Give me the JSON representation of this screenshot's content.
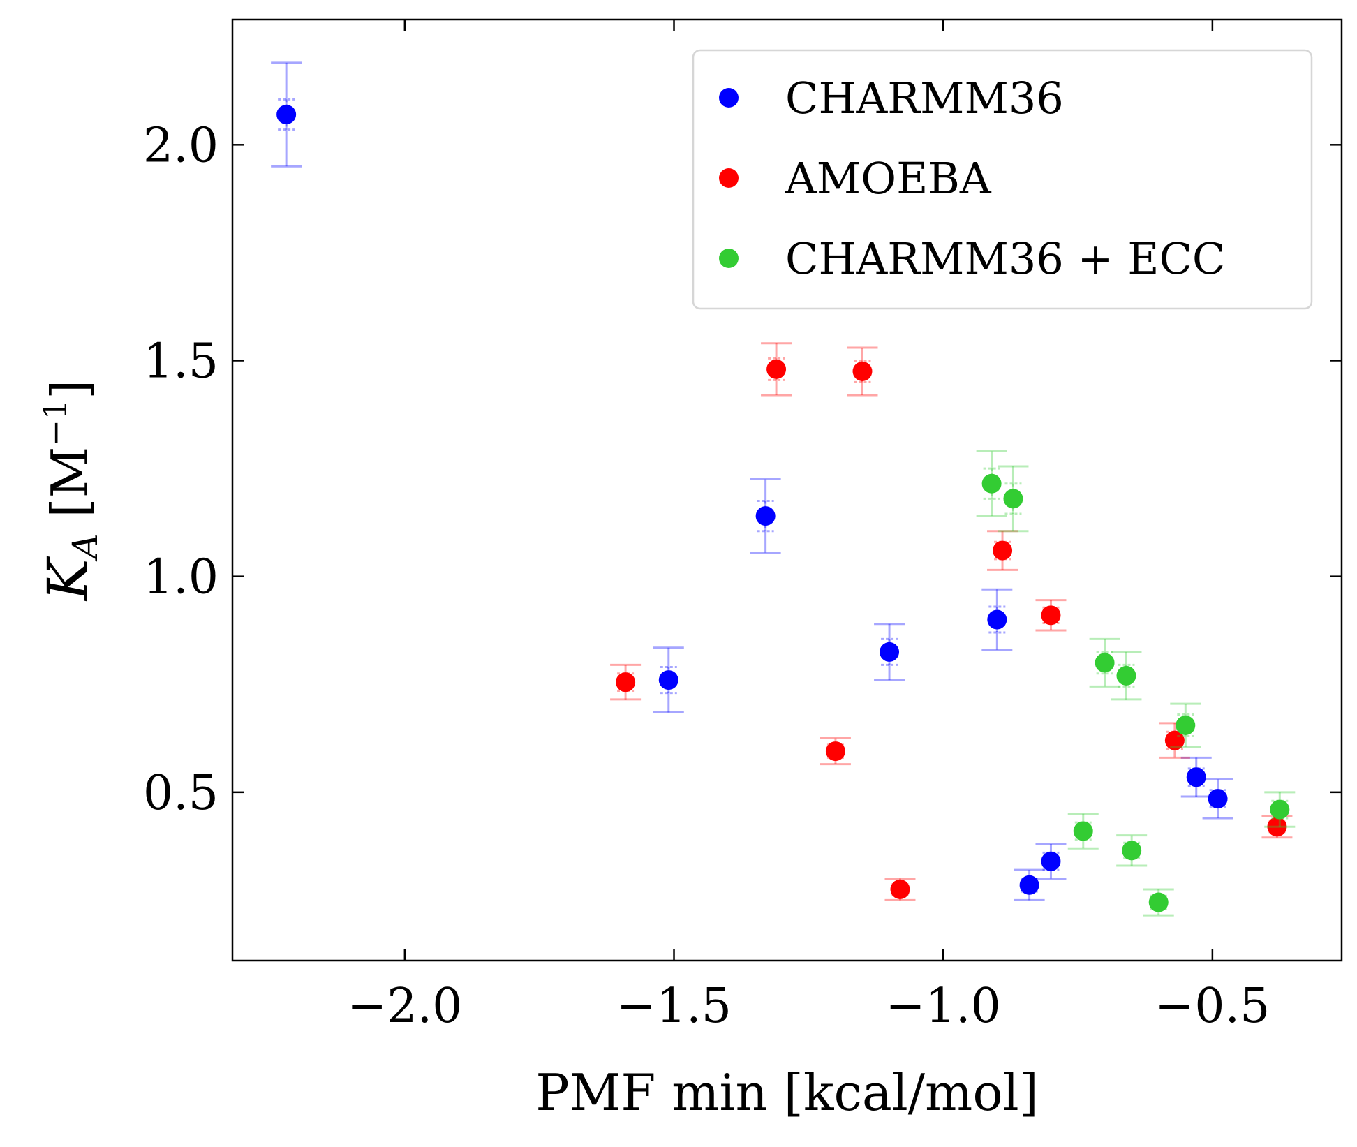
{
  "chart_data": {
    "type": "scatter",
    "title": "",
    "xlabel": "PMF min [kcal/mol]",
    "ylabel": {
      "main": "K",
      "sub": "A",
      "unit_open": " [M",
      "unit_sup": "−1",
      "unit_close": "]"
    },
    "xlim": [
      -2.32,
      -0.26
    ],
    "ylim": [
      0.11,
      2.29
    ],
    "xticks": [
      -2.0,
      -1.5,
      -1.0,
      -0.5
    ],
    "xtick_labels": [
      "−2.0",
      "−1.5",
      "−1.0",
      "−0.5"
    ],
    "yticks": [
      0.5,
      1.0,
      1.5,
      2.0
    ],
    "ytick_labels": [
      "0.5",
      "1.0",
      "1.5",
      "2.0"
    ],
    "grid": false,
    "legend_position": "top-right",
    "series": [
      {
        "name": "CHARMM36",
        "color": "#0000ff",
        "points": [
          {
            "x": -2.22,
            "y": 2.07,
            "err_outer": 0.12,
            "err_inner": 0.035
          },
          {
            "x": -1.51,
            "y": 0.76,
            "err_outer": 0.075,
            "err_inner": 0.03
          },
          {
            "x": -1.33,
            "y": 1.14,
            "err_outer": 0.085,
            "err_inner": 0.035
          },
          {
            "x": -1.1,
            "y": 0.825,
            "err_outer": 0.065,
            "err_inner": 0.03
          },
          {
            "x": -0.9,
            "y": 0.9,
            "err_outer": 0.07,
            "err_inner": 0.03
          },
          {
            "x": -0.84,
            "y": 0.285,
            "err_outer": 0.035,
            "err_inner": 0.015
          },
          {
            "x": -0.8,
            "y": 0.34,
            "err_outer": 0.04,
            "err_inner": 0.02
          },
          {
            "x": -0.53,
            "y": 0.535,
            "err_outer": 0.045,
            "err_inner": 0.02
          },
          {
            "x": -0.49,
            "y": 0.485,
            "err_outer": 0.045,
            "err_inner": 0.02
          }
        ]
      },
      {
        "name": "AMOEBA",
        "color": "#ff0000",
        "points": [
          {
            "x": -1.59,
            "y": 0.755,
            "err_outer": 0.04,
            "err_inner": 0.02
          },
          {
            "x": -1.31,
            "y": 1.48,
            "err_outer": 0.06,
            "err_inner": 0.025
          },
          {
            "x": -1.2,
            "y": 0.595,
            "err_outer": 0.03,
            "err_inner": 0.015
          },
          {
            "x": -1.15,
            "y": 1.475,
            "err_outer": 0.055,
            "err_inner": 0.025
          },
          {
            "x": -1.08,
            "y": 0.275,
            "err_outer": 0.025,
            "err_inner": 0.012
          },
          {
            "x": -0.89,
            "y": 1.06,
            "err_outer": 0.045,
            "err_inner": 0.02
          },
          {
            "x": -0.8,
            "y": 0.91,
            "err_outer": 0.035,
            "err_inner": 0.018
          },
          {
            "x": -0.57,
            "y": 0.62,
            "err_outer": 0.04,
            "err_inner": 0.02
          },
          {
            "x": -0.38,
            "y": 0.42,
            "err_outer": 0.025,
            "err_inner": 0.012
          }
        ]
      },
      {
        "name": "CHARMM36 + ECC",
        "color": "#33cc33",
        "points": [
          {
            "x": -0.91,
            "y": 1.215,
            "err_outer": 0.075,
            "err_inner": 0.035
          },
          {
            "x": -0.87,
            "y": 1.18,
            "err_outer": 0.075,
            "err_inner": 0.035
          },
          {
            "x": -0.74,
            "y": 0.41,
            "err_outer": 0.04,
            "err_inner": 0.02
          },
          {
            "x": -0.7,
            "y": 0.8,
            "err_outer": 0.055,
            "err_inner": 0.025
          },
          {
            "x": -0.66,
            "y": 0.77,
            "err_outer": 0.055,
            "err_inner": 0.025
          },
          {
            "x": -0.65,
            "y": 0.365,
            "err_outer": 0.035,
            "err_inner": 0.018
          },
          {
            "x": -0.6,
            "y": 0.245,
            "err_outer": 0.03,
            "err_inner": 0.015
          },
          {
            "x": -0.55,
            "y": 0.655,
            "err_outer": 0.05,
            "err_inner": 0.025
          },
          {
            "x": -0.375,
            "y": 0.46,
            "err_outer": 0.04,
            "err_inner": 0.02
          }
        ]
      }
    ]
  }
}
